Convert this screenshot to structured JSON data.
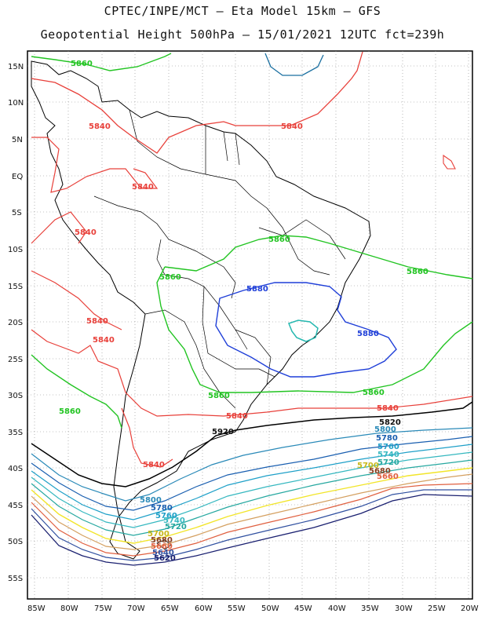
{
  "title": {
    "line1": "CPTEC/INPE/MCT –  Eta Model 15km – GFS",
    "line2": "Geopotential Height 500hPa – 15/01/2021 12UTC fct=239h"
  },
  "axes": {
    "lat_labels": [
      "15N",
      "10N",
      "5N",
      "EQ",
      "5S",
      "10S",
      "15S",
      "20S",
      "25S",
      "30S",
      "35S",
      "40S",
      "45S",
      "50S",
      "55S"
    ],
    "lon_labels": [
      "85W",
      "80W",
      "75W",
      "70W",
      "65W",
      "60W",
      "55W",
      "50W",
      "45W",
      "40W",
      "35W",
      "30W",
      "25W",
      "20W"
    ]
  },
  "colors": {
    "c5920": "#000000",
    "c5880": "#1f3fd8",
    "c5860": "#22c422",
    "c5840": "#e8403a",
    "c5820": "#111111",
    "c5800": "#2a8ab8",
    "c5780": "#1a5fb0",
    "c5760": "#1fa0c8",
    "c5740": "#36b8c0",
    "c5720": "#26a8a0",
    "c5700": "#f2e52a",
    "c5680": "#d4a060",
    "c5660": "#e06040",
    "c5640": "#3050a0",
    "c5620": "#1a2070",
    "coast": "#000000"
  },
  "contour_labels": {
    "l5860_a": "5860",
    "l5840_a": "5840",
    "l5840_b": "5840",
    "l5840_c": "5840",
    "l5840_d": "5840",
    "l5840_e": "5840",
    "l5840_f": "5840",
    "l5860_b": "5860",
    "l5860_c": "5860",
    "l5880_a": "5880",
    "l5880_b": "5880",
    "l5860_d": "5860",
    "l5860_e": "5860",
    "l5860_f": "5860",
    "l5840_g": "5840",
    "l5840_h": "5840",
    "l5840_i": "5840",
    "l5820": "5820",
    "l5920": "5920",
    "l5800_a": "5800",
    "l5780_a": "5780",
    "l5760_a": "5760",
    "l5740_a": "5740",
    "l5720_a": "5720",
    "l5700_a": "5700",
    "l5680_a": "5680",
    "l5660_a": "5660",
    "l5800_b": "5800",
    "l5780_b": "5780",
    "l5760_b": "5760",
    "l5740_b": "5740",
    "l5720_b": "5720",
    "l5700_b": "5700",
    "l5680_b": "5680",
    "l5660_b": "5660",
    "l5640_b": "5640",
    "l5620_b": "5620"
  }
}
